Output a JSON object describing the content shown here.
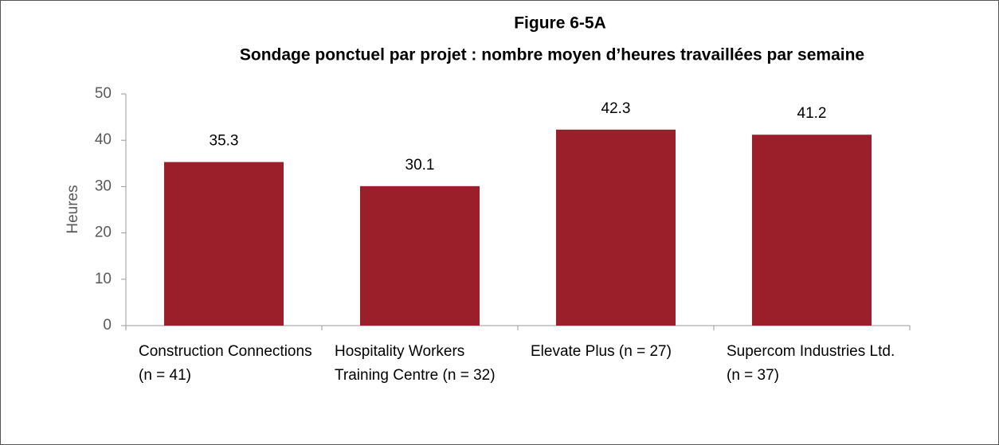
{
  "chart_data": {
    "type": "bar",
    "title": "Figure 6-5A",
    "subtitle": "Sondage ponctuel par projet : nombre moyen d’heures travaillées par semaine",
    "y_label": "Heures",
    "categories": [
      "Construction Connections (n = 41)",
      "Hospitality Workers Training Centre (n = 32)",
      "Elevate Plus (n = 27)",
      "Supercom Industries Ltd. (n = 37)"
    ],
    "values": [
      35.3,
      30.1,
      42.3,
      41.2
    ],
    "color": "#9b1f2a",
    "ylim": [
      0,
      50
    ],
    "yticks": [
      0,
      10,
      20,
      30,
      40,
      50
    ],
    "grid": false
  }
}
